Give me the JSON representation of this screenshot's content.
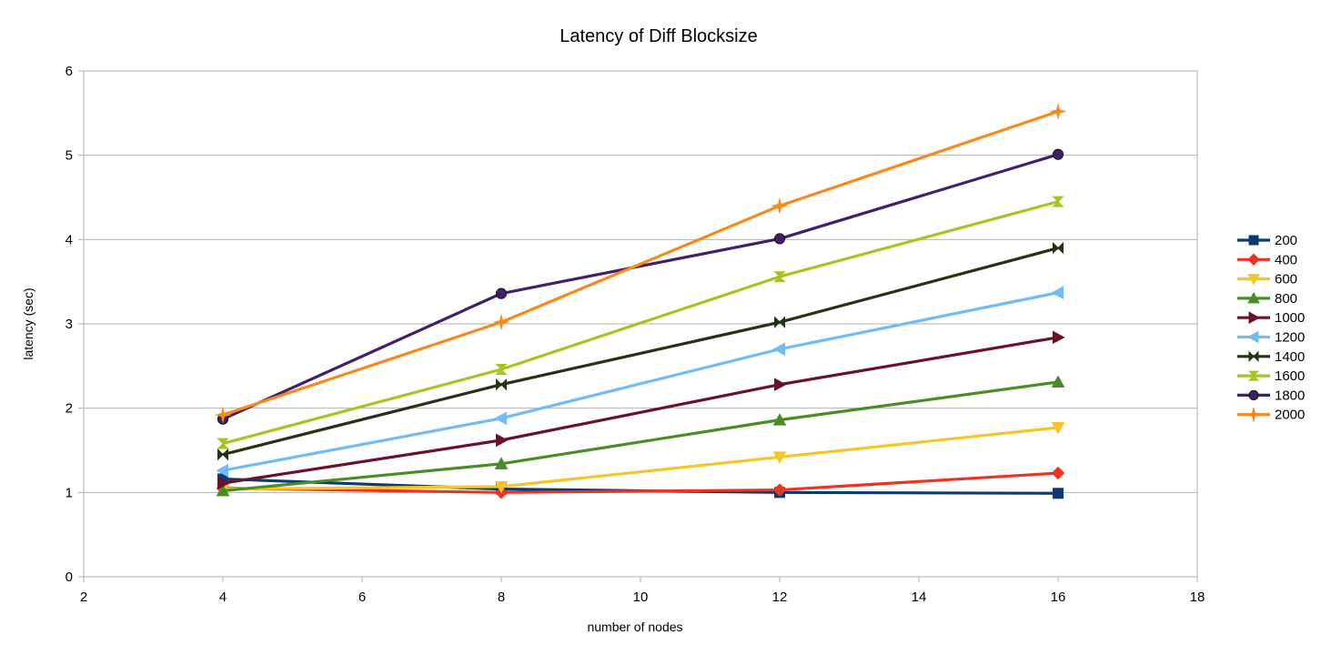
{
  "chart_data": {
    "type": "line",
    "title": "Latency of Diff Blocksize",
    "xlabel": "number of nodes",
    "ylabel": "latency (sec)",
    "xlim": [
      2,
      18
    ],
    "ylim": [
      0,
      6
    ],
    "xticks": [
      2,
      4,
      6,
      8,
      10,
      12,
      14,
      16,
      18
    ],
    "yticks": [
      0,
      1,
      2,
      3,
      4,
      5,
      6
    ],
    "grid": "horizontal",
    "legend_position": "right",
    "x": [
      4,
      8,
      12,
      16
    ],
    "series": [
      {
        "name": "200",
        "color": "#0b3a73",
        "marker": "square",
        "values": [
          1.16,
          1.04,
          1.0,
          0.99
        ]
      },
      {
        "name": "400",
        "color": "#ee3322",
        "marker": "diamond",
        "values": [
          1.05,
          1.0,
          1.03,
          1.23
        ]
      },
      {
        "name": "600",
        "color": "#f5c627",
        "marker": "triangle-down",
        "values": [
          1.04,
          1.07,
          1.42,
          1.77
        ]
      },
      {
        "name": "800",
        "color": "#4a8d27",
        "marker": "triangle-up",
        "values": [
          1.02,
          1.34,
          1.86,
          2.31
        ]
      },
      {
        "name": "1000",
        "color": "#6d1129",
        "marker": "triangle-right",
        "values": [
          1.11,
          1.62,
          2.28,
          2.84
        ]
      },
      {
        "name": "1200",
        "color": "#73bbf5",
        "marker": "triangle-left",
        "values": [
          1.26,
          1.88,
          2.7,
          3.37
        ]
      },
      {
        "name": "1400",
        "color": "#263310",
        "marker": "bowtie",
        "values": [
          1.45,
          2.28,
          3.02,
          3.9
        ]
      },
      {
        "name": "1600",
        "color": "#a4c623",
        "marker": "hourglass",
        "values": [
          1.58,
          2.46,
          3.56,
          4.45
        ]
      },
      {
        "name": "1800",
        "color": "#431f6b",
        "marker": "circle",
        "values": [
          1.87,
          3.36,
          4.01,
          5.01
        ]
      },
      {
        "name": "2000",
        "color": "#f68a1f",
        "marker": "star",
        "values": [
          1.92,
          3.02,
          4.4,
          5.52
        ]
      }
    ]
  }
}
